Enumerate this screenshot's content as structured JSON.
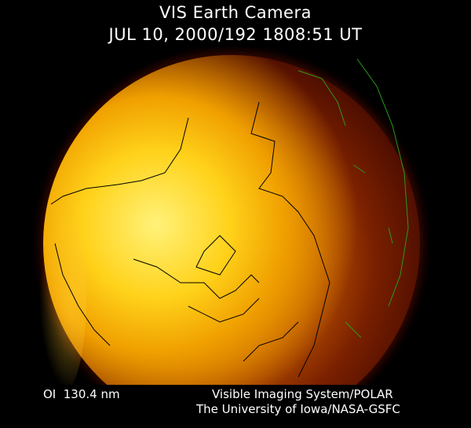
{
  "header": {
    "title": "VIS Earth Camera",
    "timestamp": "JUL 10, 2000/192 1808:51 UT"
  },
  "footer": {
    "band": "OI  130.4 nm",
    "credit_line1": "Visible Imaging System/POLAR",
    "credit_line2": "The University of Iowa/NASA-GSFC"
  },
  "colors": {
    "background": "#000000",
    "bright": "#ffd21a",
    "dark": "#4a0c00",
    "coastline": "#000000",
    "terminator_coast": "#2a9a1a"
  }
}
